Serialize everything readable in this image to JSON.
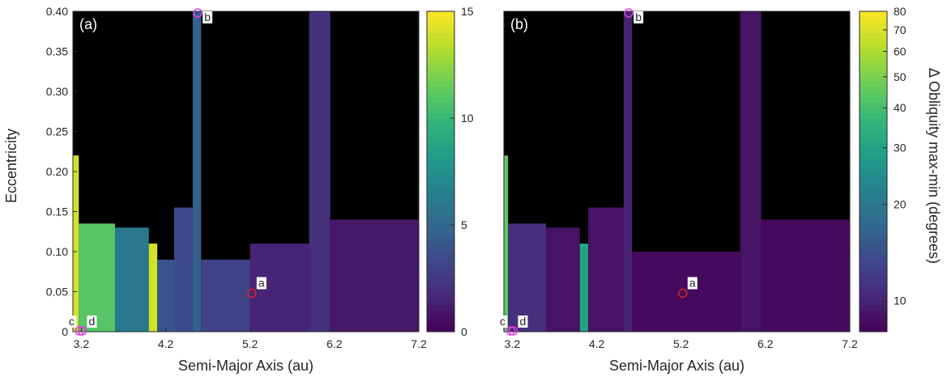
{
  "figure": {
    "ylabel_shared": "Eccentricity",
    "cbar_b_label": "Δ Obliquity max-min (degrees)"
  },
  "chart_data": [
    {
      "type": "heatmap",
      "panel_label": "(a)",
      "xlabel": "Semi-Major Axis (au)",
      "ylabel": "Eccentricity",
      "xlim": [
        3.1,
        7.2
      ],
      "ylim": [
        0,
        0.4
      ],
      "xticks": [
        "3.2",
        "4.2",
        "5.2",
        "6.2",
        "7.2"
      ],
      "xtick_values": [
        3.2,
        4.2,
        5.2,
        6.2,
        7.2
      ],
      "yticks": [
        "0",
        "0.05",
        "0.10",
        "0.15",
        "0.20",
        "0.25",
        "0.30",
        "0.35",
        "0.40"
      ],
      "ytick_values": [
        0,
        0.05,
        0.1,
        0.15,
        0.2,
        0.25,
        0.3,
        0.35,
        0.4
      ],
      "grid": false,
      "colormap": "viridis",
      "colorbar": {
        "scale": "linear",
        "range": [
          0,
          15
        ],
        "ticks": [
          "0",
          "5",
          "10",
          "15"
        ],
        "tick_values": [
          0,
          5,
          10,
          15
        ],
        "label": ""
      },
      "markers": [
        {
          "label": "a",
          "x": 5.22,
          "y": 0.048,
          "color": "#e0202a"
        },
        {
          "label": "b",
          "x": 4.58,
          "y": 0.398,
          "color": "#e040e0"
        },
        {
          "label": "c",
          "x": 3.18,
          "y": 0.0,
          "color": "#e040e0"
        },
        {
          "label": "d",
          "x": 3.21,
          "y": 0.0,
          "color": "#e040e0"
        }
      ],
      "regions": [
        {
          "x0": 3.1,
          "x1": 3.17,
          "ymax": 0.22,
          "value": 14
        },
        {
          "x0": 3.17,
          "x1": 3.6,
          "ymax": 0.135,
          "value": 11
        },
        {
          "x0": 3.6,
          "x1": 4.0,
          "ymax": 0.13,
          "value": 6
        },
        {
          "x0": 4.0,
          "x1": 4.1,
          "ymax": 0.11,
          "value": 14
        },
        {
          "x0": 4.1,
          "x1": 4.3,
          "ymax": 0.09,
          "value": 4
        },
        {
          "x0": 4.3,
          "x1": 4.52,
          "ymax": 0.155,
          "value": 3.5
        },
        {
          "x0": 4.52,
          "x1": 4.62,
          "ymax": 0.4,
          "value": 4.5
        },
        {
          "x0": 4.62,
          "x1": 5.2,
          "ymax": 0.09,
          "value": 3
        },
        {
          "x0": 5.2,
          "x1": 5.9,
          "ymax": 0.11,
          "value": 1.5
        },
        {
          "x0": 5.9,
          "x1": 6.15,
          "ymax": 0.4,
          "value": 2
        },
        {
          "x0": 6.15,
          "x1": 7.2,
          "ymax": 0.14,
          "value": 1
        }
      ]
    },
    {
      "type": "heatmap",
      "panel_label": "(b)",
      "xlabel": "Semi-Major Axis (au)",
      "ylabel": "",
      "xlim": [
        3.1,
        7.2
      ],
      "ylim": [
        0,
        0.4
      ],
      "xticks": [
        "3.2",
        "4.2",
        "5.2",
        "6.2",
        "7.2"
      ],
      "xtick_values": [
        3.2,
        4.2,
        5.2,
        6.2,
        7.2
      ],
      "yticks": [],
      "grid": false,
      "colormap": "viridis",
      "colorbar": {
        "scale": "log",
        "range": [
          8,
          80
        ],
        "ticks": [
          "10",
          "20",
          "30",
          "40",
          "50",
          "60",
          "70",
          "80"
        ],
        "tick_values": [
          10,
          20,
          30,
          40,
          50,
          60,
          70,
          80
        ],
        "label": "Δ Obliquity max-min (degrees)"
      },
      "markers": [
        {
          "label": "a",
          "x": 5.22,
          "y": 0.048,
          "color": "#e0202a"
        },
        {
          "label": "b",
          "x": 4.58,
          "y": 0.398,
          "color": "#e040e0"
        },
        {
          "label": "c",
          "x": 3.18,
          "y": 0.0,
          "color": "#e040e0"
        },
        {
          "label": "d",
          "x": 3.21,
          "y": 0.0,
          "color": "#e040e0"
        }
      ],
      "regions": [
        {
          "x0": 3.1,
          "x1": 3.15,
          "ymax": 0.22,
          "value": 45
        },
        {
          "x0": 3.15,
          "x1": 3.6,
          "ymax": 0.135,
          "value": 11
        },
        {
          "x0": 3.6,
          "x1": 4.0,
          "ymax": 0.13,
          "value": 9
        },
        {
          "x0": 4.0,
          "x1": 4.1,
          "ymax": 0.11,
          "value": 30
        },
        {
          "x0": 4.1,
          "x1": 4.52,
          "ymax": 0.155,
          "value": 9
        },
        {
          "x0": 4.52,
          "x1": 4.62,
          "ymax": 0.4,
          "value": 10
        },
        {
          "x0": 4.62,
          "x1": 5.9,
          "ymax": 0.1,
          "value": 8.5
        },
        {
          "x0": 5.9,
          "x1": 6.15,
          "ymax": 0.4,
          "value": 9
        },
        {
          "x0": 6.15,
          "x1": 7.2,
          "ymax": 0.14,
          "value": 8.5
        }
      ]
    }
  ]
}
